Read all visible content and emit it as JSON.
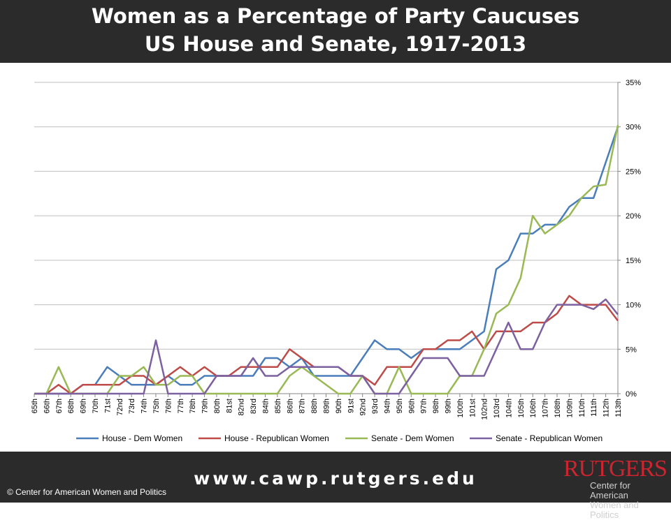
{
  "header": {
    "title_line1": "Women as a Percentage of Party Caucuses",
    "title_line2": "US House and Senate, 1917-2013"
  },
  "footer": {
    "url": "www.cawp.rutgers.edu",
    "copyright": "© Center for American Women and Politics",
    "logo_word": "RUTGERS",
    "logo_line1": "Center for American",
    "logo_line2": "Women and Politics"
  },
  "chart_data": {
    "type": "line",
    "title": "Women as a Percentage of Party Caucuses US House and Senate, 1917-2013",
    "categories": [
      "65th",
      "66th",
      "67th",
      "68th",
      "69th",
      "70th",
      "71st",
      "72nd",
      "73rd",
      "74th",
      "75th",
      "76th",
      "77th",
      "78th",
      "79th",
      "80th",
      "81st",
      "82nd",
      "83rd",
      "84th",
      "85th",
      "86th",
      "87th",
      "88th",
      "89th",
      "90th",
      "91st",
      "92nd",
      "93rd",
      "94th",
      "95th",
      "96th",
      "97th",
      "98th",
      "99th",
      "100th",
      "101st",
      "102nd",
      "103rd",
      "104th",
      "105th",
      "106th",
      "107th",
      "108th",
      "109th",
      "110th",
      "111th",
      "112th",
      "113th"
    ],
    "y_ticks": [
      "0%",
      "5%",
      "10%",
      "15%",
      "20%",
      "25%",
      "30%",
      "35%"
    ],
    "ylim": [
      0,
      35
    ],
    "y_axis_position": "right",
    "grid": true,
    "legend_position": "bottom",
    "series": [
      {
        "name": "House - Dem Women",
        "color": "#4a7ebb",
        "values": [
          0,
          0,
          0,
          0,
          1,
          1,
          3,
          2,
          1,
          1,
          1,
          2,
          1,
          1,
          2,
          2,
          2,
          2,
          2,
          4,
          4,
          3,
          4,
          2,
          2,
          2,
          2,
          4,
          6,
          5,
          5,
          4,
          5,
          5,
          5,
          5,
          6,
          7,
          14,
          15,
          18,
          18,
          19,
          19,
          21,
          22,
          22,
          26,
          30
        ]
      },
      {
        "name": "House - Republican Women",
        "color": "#be4b48",
        "values": [
          0,
          0,
          1,
          0,
          1,
          1,
          1,
          1,
          2,
          2,
          1,
          2,
          3,
          2,
          3,
          2,
          2,
          3,
          3,
          3,
          3,
          5,
          4,
          3,
          3,
          3,
          2,
          2,
          1,
          3,
          3,
          3,
          5,
          5,
          6,
          6,
          7,
          5,
          7,
          7,
          7,
          8,
          8,
          9,
          11,
          10,
          10,
          10,
          8.2
        ]
      },
      {
        "name": "Senate - Dem Women",
        "color": "#98b954",
        "values": [
          0,
          0,
          3,
          0,
          0,
          0,
          0,
          2,
          2,
          3,
          1,
          1,
          2,
          2,
          0,
          0,
          0,
          0,
          0,
          0,
          0,
          2,
          3,
          2,
          1,
          0,
          0,
          2,
          0,
          0,
          3,
          0,
          0,
          0,
          0,
          2,
          2,
          5,
          9,
          10,
          13,
          20,
          18,
          19,
          20,
          22,
          23.3,
          23.5,
          30.2
        ]
      },
      {
        "name": "Senate - Republican Women",
        "color": "#7d60a0",
        "values": [
          0,
          0,
          0,
          0,
          0,
          0,
          0,
          0,
          0,
          0,
          6,
          0,
          0,
          0,
          0,
          2,
          2,
          2,
          4,
          2,
          2,
          3,
          3,
          3,
          3,
          3,
          2,
          2,
          0,
          0,
          0,
          2,
          4,
          4,
          4,
          2,
          2,
          2,
          5,
          8,
          5,
          5,
          8,
          10,
          10,
          10,
          9.5,
          10.6,
          8.9
        ]
      }
    ]
  }
}
